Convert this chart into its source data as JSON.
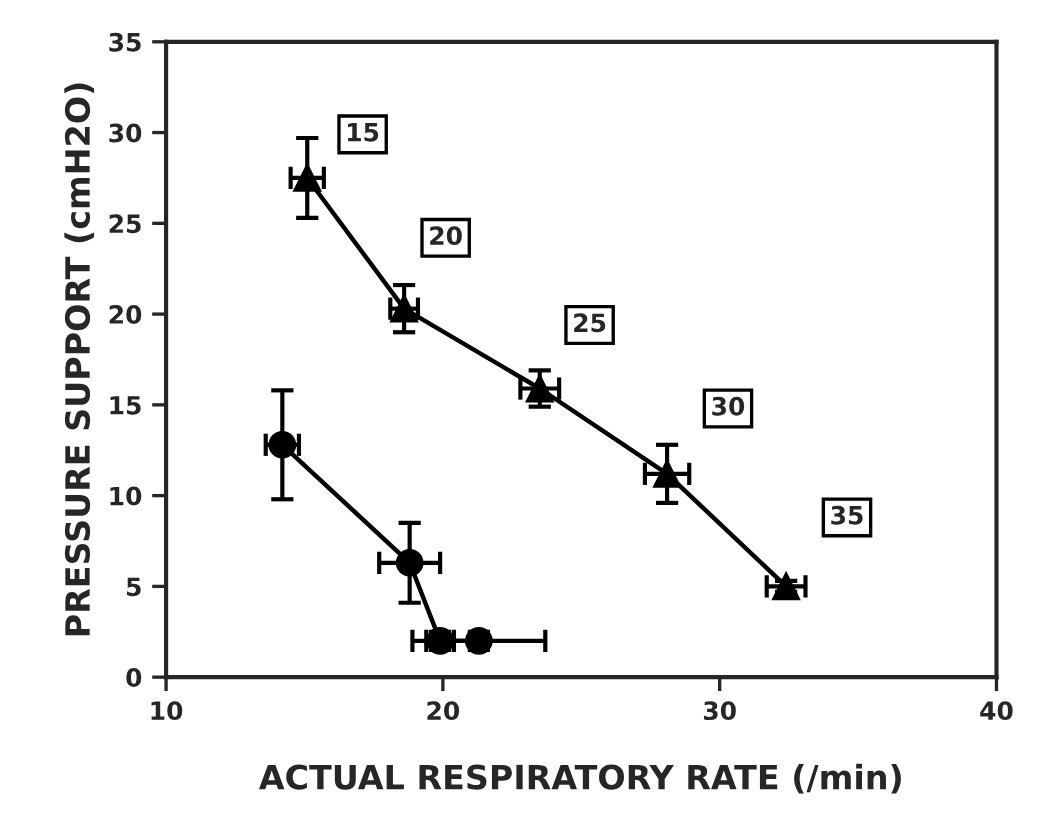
{
  "chart_data": {
    "type": "line",
    "xlabel": "ACTUAL RESPIRATORY RATE (/min)",
    "ylabel": "PRESSURE SUPPORT (cmH2O)",
    "xlim": [
      10,
      40
    ],
    "xticks": [
      10,
      20,
      30,
      40
    ],
    "ylim": [
      0,
      35
    ],
    "yticks": [
      0,
      5,
      10,
      15,
      20,
      25,
      30,
      35
    ],
    "grid": false,
    "legend": false,
    "line_style": "solid",
    "series": [
      {
        "color": "#000000",
        "marker": "triangle",
        "x": [
          15.1,
          18.6,
          23.5,
          28.1,
          32.4
        ],
        "values": [
          27.5,
          20.3,
          15.9,
          11.2,
          5.0
        ],
        "errors": [
          2.2,
          1.3,
          1.0,
          1.6,
          0.3
        ],
        "xerrors": [
          0.6,
          0.5,
          0.7,
          0.8,
          0.7
        ]
      },
      {
        "color": "#000000",
        "marker": "circle",
        "x": [
          14.2,
          18.8,
          19.9,
          21.3
        ],
        "values": [
          12.8,
          6.3,
          2.0,
          2.0
        ],
        "errors": [
          3.0,
          2.2,
          0.5,
          0.5
        ],
        "xerrors": [
          0.6,
          1.1,
          0.5,
          2.4
        ]
      }
    ],
    "annotations": [
      {
        "text": "15",
        "x": 17.1,
        "y": 29.9
      },
      {
        "text": "20",
        "x": 20.1,
        "y": 24.2
      },
      {
        "text": "25",
        "x": 25.3,
        "y": 19.4
      },
      {
        "text": "30",
        "x": 30.3,
        "y": 14.8
      },
      {
        "text": "35",
        "x": 34.6,
        "y": 8.8
      }
    ]
  }
}
